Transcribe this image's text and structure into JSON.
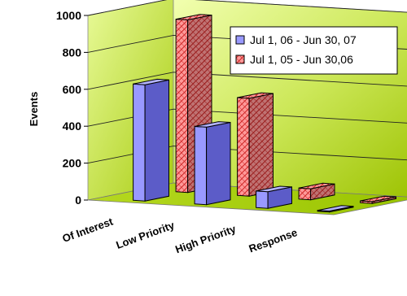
{
  "chart_data": {
    "type": "bar",
    "variant": "3d-clustered-depth",
    "ylabel": "Events",
    "ylim": [
      0,
      1000
    ],
    "yticks": [
      0,
      200,
      400,
      600,
      800,
      1000
    ],
    "categories": [
      "Of Interest",
      "Low Priority",
      "High Priority",
      "Response"
    ],
    "series": [
      {
        "name": "Jul 1, 06 - Jun 30, 07",
        "values": [
          630,
          420,
          90,
          5
        ],
        "color": "#9999ff",
        "pattern": "solid"
      },
      {
        "name": "Jul 1, 05 - Jun 30,06",
        "values": [
          935,
          530,
          60,
          10
        ],
        "color": "#ff9999",
        "pattern": "crosshatch"
      }
    ],
    "legend": "top-right",
    "grid": true,
    "floor_color": "#99cc00",
    "wall_color": "#99cc00"
  }
}
